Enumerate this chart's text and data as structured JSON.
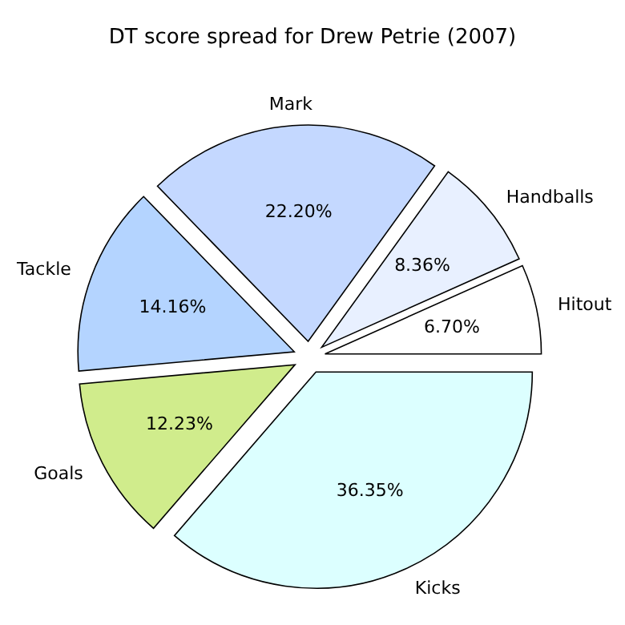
{
  "chart_data": {
    "type": "pie",
    "title": "DT score spread for Drew Petrie (2007)",
    "categories": [
      "Hitout",
      "Handballs",
      "Mark",
      "Tackle",
      "Goals",
      "Kicks"
    ],
    "values": [
      6.7,
      8.36,
      22.2,
      14.16,
      12.23,
      36.35
    ],
    "value_labels": [
      "6.70%",
      "8.36%",
      "22.20%",
      "14.16%",
      "12.23%",
      "36.35%"
    ],
    "colors": [
      "#ffffff",
      "#e8f0ff",
      "#c4d8ff",
      "#b4d4ff",
      "#d0ec8c",
      "#dcffff"
    ]
  }
}
